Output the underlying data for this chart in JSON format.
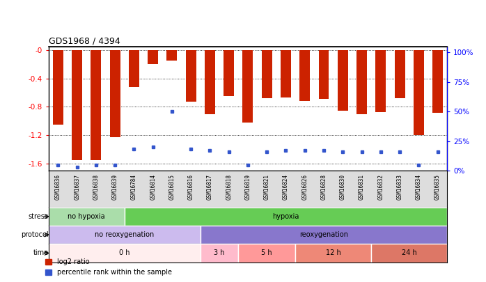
{
  "title": "GDS1968 / 4394",
  "samples": [
    "GSM16836",
    "GSM16837",
    "GSM16838",
    "GSM16839",
    "GSM16784",
    "GSM16814",
    "GSM16815",
    "GSM16816",
    "GSM16817",
    "GSM16818",
    "GSM16819",
    "GSM16821",
    "GSM16824",
    "GSM16826",
    "GSM16828",
    "GSM16830",
    "GSM16831",
    "GSM16832",
    "GSM16833",
    "GSM16834",
    "GSM16835"
  ],
  "log2_ratio": [
    -1.05,
    -1.55,
    -1.55,
    -1.23,
    -0.52,
    -0.2,
    -0.15,
    -0.73,
    -0.9,
    -0.65,
    -1.02,
    -0.68,
    -0.67,
    -0.72,
    -0.69,
    -0.86,
    -0.9,
    -0.87,
    -0.68,
    -1.2,
    -0.88
  ],
  "percentile": [
    5,
    3,
    5,
    5,
    18,
    20,
    50,
    18,
    17,
    16,
    5,
    16,
    17,
    17,
    17,
    16,
    16,
    16,
    16,
    5,
    16
  ],
  "bar_color": "#cc2200",
  "dot_color": "#3355cc",
  "ylim_left": [
    -1.7,
    0.05
  ],
  "ylim_right": [
    0,
    105
  ],
  "yticks_left": [
    0.0,
    -0.4,
    -0.8,
    -1.2,
    -1.6
  ],
  "yticks_right": [
    0,
    25,
    50,
    75,
    100
  ],
  "stress_groups": [
    {
      "label": "no hypoxia",
      "start": 0,
      "end": 4,
      "color": "#aaddaa"
    },
    {
      "label": "hypoxia",
      "start": 4,
      "end": 21,
      "color": "#66cc55"
    }
  ],
  "protocol_groups": [
    {
      "label": "no reoxygenation",
      "start": 0,
      "end": 8,
      "color": "#ccbbee"
    },
    {
      "label": "reoxygenation",
      "start": 8,
      "end": 21,
      "color": "#8877cc"
    }
  ],
  "time_groups": [
    {
      "label": "0 h",
      "start": 0,
      "end": 8,
      "color": "#ffeeee"
    },
    {
      "label": "3 h",
      "start": 8,
      "end": 10,
      "color": "#ffbbcc"
    },
    {
      "label": "5 h",
      "start": 10,
      "end": 13,
      "color": "#ff9999"
    },
    {
      "label": "12 h",
      "start": 13,
      "end": 17,
      "color": "#ee8877"
    },
    {
      "label": "24 h",
      "start": 17,
      "end": 21,
      "color": "#dd7766"
    }
  ],
  "bg_color": "#ffffff",
  "xtick_bg": "#dddddd"
}
